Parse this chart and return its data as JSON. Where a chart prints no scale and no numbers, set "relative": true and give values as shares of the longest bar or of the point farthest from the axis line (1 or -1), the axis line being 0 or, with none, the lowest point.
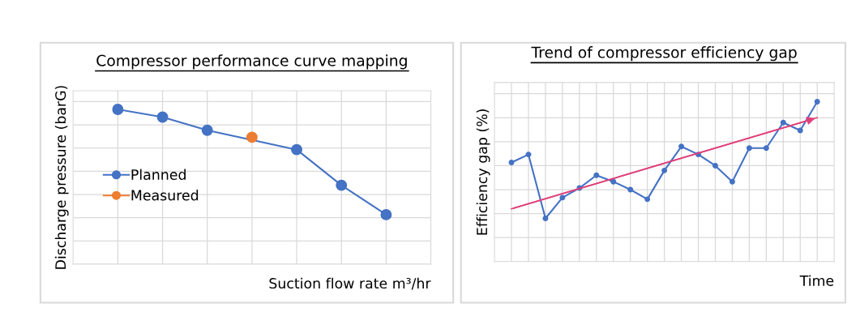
{
  "chart_data": [
    {
      "type": "line",
      "title": "Compressor performance curve mapping",
      "xlabel": "Suction flow rate m³/hr",
      "ylabel": "Discharge pressure (barG)",
      "relative": true,
      "grid": true,
      "legend": "left",
      "marker": "circle",
      "tick_labels": false,
      "categories": [
        null,
        null,
        null,
        null,
        null,
        null,
        null
      ],
      "series": [
        {
          "name": "Planned",
          "color": "#4472c4",
          "values": [
            1,
            0.95,
            0.865,
            null,
            0.74,
            0.51,
            0.32
          ]
        },
        {
          "name": "Measured",
          "color": "#ed7d31",
          "values": [
            null,
            null,
            null,
            0.82,
            null,
            null,
            null
          ]
        }
      ]
    },
    {
      "type": "line",
      "title": "Trend of compressor efficiency gap",
      "xlabel": "Time",
      "ylabel": "Efficiency gap (%)",
      "relative": true,
      "grid": true,
      "marker": "circle",
      "tick_labels": false,
      "categories": [
        null,
        null,
        null,
        null,
        null,
        null,
        null,
        null,
        null,
        null,
        null,
        null,
        null,
        null,
        null,
        null,
        null,
        null,
        null
      ],
      "series": [
        {
          "color": "#4472c4",
          "values": [
            0.62,
            0.67,
            0.27,
            0.4,
            0.46,
            0.54,
            0.5,
            0.45,
            0.39,
            0.57,
            0.72,
            0.67,
            0.6,
            0.5,
            0.71,
            0.71,
            0.87,
            0.82,
            1
          ]
        },
        {
          "type": "line",
          "color": "#e0407a",
          "marker": "none",
          "values": [
            0.33,
            null,
            null,
            null,
            null,
            null,
            null,
            null,
            null,
            null,
            null,
            null,
            null,
            null,
            null,
            null,
            null,
            null,
            0.9
          ]
        }
      ]
    }
  ]
}
